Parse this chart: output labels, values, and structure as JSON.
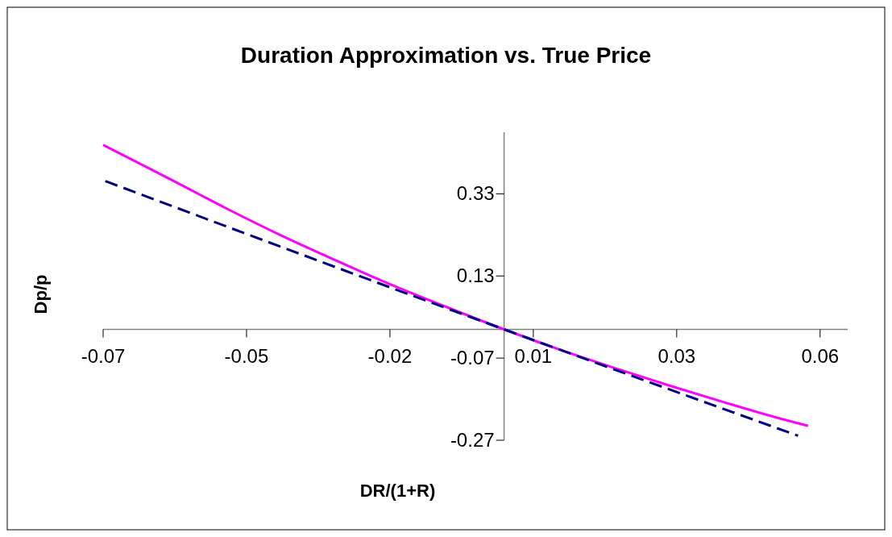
{
  "chart_data": {
    "type": "line",
    "title": "Duration Approximation vs. True Price",
    "xlabel": "DR/(1+R)",
    "ylabel": "Dp/p",
    "xlim": [
      -0.0727,
      0.0623
    ],
    "ylim": [
      -0.27,
      0.48
    ],
    "xticks": [
      {
        "value": -0.0727,
        "label": "-0.07"
      },
      {
        "value": -0.0467,
        "label": "-0.05"
      },
      {
        "value": -0.0207,
        "label": "-0.02"
      },
      {
        "value": 0.0053,
        "label": "0.01"
      },
      {
        "value": 0.0313,
        "label": "0.03"
      },
      {
        "value": 0.0573,
        "label": "0.06"
      }
    ],
    "yticks": [
      -0.27,
      -0.07,
      0.13,
      0.33
    ],
    "marker": "none",
    "series": [
      {
        "color": "#ff00ff",
        "line_style": "solid",
        "x": [
          -0.0727,
          -0.06,
          -0.05,
          -0.04,
          -0.03,
          -0.02,
          -0.01,
          0,
          0.01,
          0.02,
          0.03,
          0.04,
          0.05,
          0.0551
        ],
        "values": [
          0.449,
          0.362,
          0.292,
          0.226,
          0.165,
          0.106,
          0.052,
          0,
          -0.049,
          -0.094,
          -0.137,
          -0.178,
          -0.217,
          -0.235
        ]
      },
      {
        "color": "#000080",
        "line_style": "dashed",
        "x": [
          -0.0723,
          0,
          0.0533
        ],
        "values": [
          0.361,
          0,
          -0.259
        ]
      }
    ]
  }
}
